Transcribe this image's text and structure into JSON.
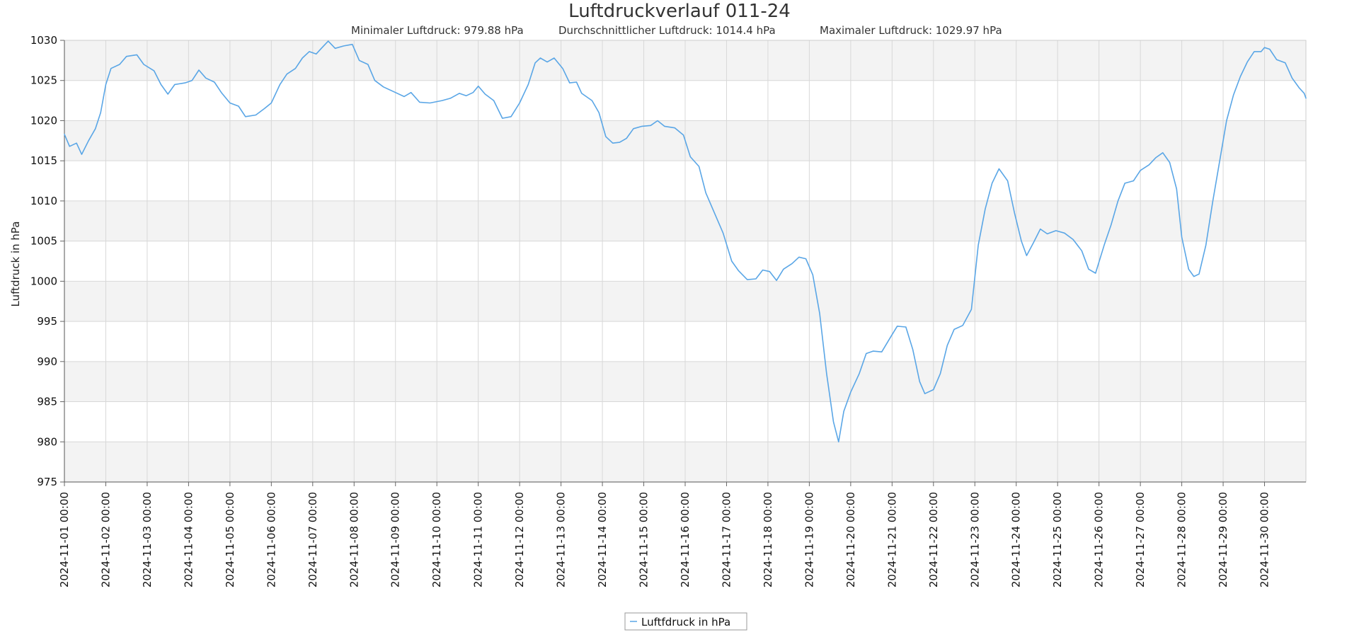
{
  "title": "Luftdruckverlauf 011-24",
  "stats": {
    "min": "Minimaler Luftdruck: 979.88 hPa",
    "avg": "Durchschnittlicher Luftdruck: 1014.4 hPa",
    "max": "Maximaler Luftdruck: 1029.97 hPa"
  },
  "legend": {
    "label": "Luftfdruck in hPa"
  },
  "colors": {
    "line": "#5aa6e6",
    "band": "#f3f3f3",
    "grid": "#d8d8d8"
  },
  "chart_data": {
    "type": "line",
    "title": "Luftdruckverlauf 011-24",
    "ylabel": "Luftdruck in hPa",
    "xlabel": "",
    "ylim": [
      975,
      1030
    ],
    "xlim": [
      "2024-11-01 00:00",
      "2024-12-01 00:00"
    ],
    "grid": true,
    "legend_position": "bottom",
    "y_ticks": [
      975,
      980,
      985,
      990,
      995,
      1000,
      1005,
      1010,
      1015,
      1020,
      1025,
      1030
    ],
    "x_tick_labels": [
      "2024-11-01 00:00",
      "2024-11-02 00:00",
      "2024-11-03 00:00",
      "2024-11-04 00:00",
      "2024-11-05 00:00",
      "2024-11-06 00:00",
      "2024-11-07 00:00",
      "2024-11-08 00:00",
      "2024-11-09 00:00",
      "2024-11-10 00:00",
      "2024-11-11 00:00",
      "2024-11-12 00:00",
      "2024-11-13 00:00",
      "2024-11-14 00:00",
      "2024-11-15 00:00",
      "2024-11-16 00:00",
      "2024-11-17 00:00",
      "2024-11-18 00:00",
      "2024-11-19 00:00",
      "2024-11-20 00:00",
      "2024-11-21 00:00",
      "2024-11-22 00:00",
      "2024-11-23 00:00",
      "2024-11-24 00:00",
      "2024-11-25 00:00",
      "2024-11-26 00:00",
      "2024-11-27 00:00",
      "2024-11-28 00:00",
      "2024-11-29 00:00",
      "2024-11-30 00:00"
    ],
    "series": [
      {
        "name": "Luftfdruck in hPa",
        "points": [
          [
            "2024-11-01 00:00",
            1018.3
          ],
          [
            "2024-11-01 03:00",
            1016.8
          ],
          [
            "2024-11-01 07:00",
            1017.2
          ],
          [
            "2024-11-01 10:00",
            1015.8
          ],
          [
            "2024-11-01 14:00",
            1017.5
          ],
          [
            "2024-11-01 18:00",
            1019.0
          ],
          [
            "2024-11-01 21:00",
            1021.0
          ],
          [
            "2024-11-02 00:00",
            1024.5
          ],
          [
            "2024-11-02 03:00",
            1026.5
          ],
          [
            "2024-11-02 08:00",
            1027.0
          ],
          [
            "2024-11-02 12:00",
            1028.0
          ],
          [
            "2024-11-02 18:00",
            1028.2
          ],
          [
            "2024-11-02 22:00",
            1027.0
          ],
          [
            "2024-11-03 04:00",
            1026.2
          ],
          [
            "2024-11-03 08:00",
            1024.5
          ],
          [
            "2024-11-03 12:00",
            1023.3
          ],
          [
            "2024-11-03 16:00",
            1024.5
          ],
          [
            "2024-11-03 22:00",
            1024.7
          ],
          [
            "2024-11-04 02:00",
            1025.0
          ],
          [
            "2024-11-04 06:00",
            1026.3
          ],
          [
            "2024-11-04 10:00",
            1025.3
          ],
          [
            "2024-11-04 15:00",
            1024.8
          ],
          [
            "2024-11-04 19:00",
            1023.5
          ],
          [
            "2024-11-05 00:00",
            1022.2
          ],
          [
            "2024-11-05 05:00",
            1021.8
          ],
          [
            "2024-11-05 09:00",
            1020.5
          ],
          [
            "2024-11-05 15:00",
            1020.7
          ],
          [
            "2024-11-05 20:00",
            1021.5
          ],
          [
            "2024-11-06 00:00",
            1022.2
          ],
          [
            "2024-11-06 05:00",
            1024.5
          ],
          [
            "2024-11-06 09:00",
            1025.8
          ],
          [
            "2024-11-06 14:00",
            1026.5
          ],
          [
            "2024-11-06 18:00",
            1027.8
          ],
          [
            "2024-11-06 22:00",
            1028.6
          ],
          [
            "2024-11-07 02:00",
            1028.3
          ],
          [
            "2024-11-07 05:00",
            1029.0
          ],
          [
            "2024-11-07 09:00",
            1029.9
          ],
          [
            "2024-11-07 13:00",
            1029.0
          ],
          [
            "2024-11-07 18:00",
            1029.3
          ],
          [
            "2024-11-07 23:00",
            1029.5
          ],
          [
            "2024-11-08 03:00",
            1027.5
          ],
          [
            "2024-11-08 08:00",
            1027.0
          ],
          [
            "2024-11-08 12:00",
            1025.0
          ],
          [
            "2024-11-08 17:00",
            1024.2
          ],
          [
            "2024-11-09 00:00",
            1023.5
          ],
          [
            "2024-11-09 05:00",
            1023.0
          ],
          [
            "2024-11-09 09:00",
            1023.5
          ],
          [
            "2024-11-09 14:00",
            1022.3
          ],
          [
            "2024-11-09 20:00",
            1022.2
          ],
          [
            "2024-11-10 03:00",
            1022.5
          ],
          [
            "2024-11-10 08:00",
            1022.8
          ],
          [
            "2024-11-10 13:00",
            1023.4
          ],
          [
            "2024-11-10 17:00",
            1023.1
          ],
          [
            "2024-11-10 21:00",
            1023.5
          ],
          [
            "2024-11-11 00:00",
            1024.3
          ],
          [
            "2024-11-11 04:00",
            1023.3
          ],
          [
            "2024-11-11 09:00",
            1022.5
          ],
          [
            "2024-11-11 14:00",
            1020.3
          ],
          [
            "2024-11-11 19:00",
            1020.5
          ],
          [
            "2024-11-12 00:00",
            1022.2
          ],
          [
            "2024-11-12 05:00",
            1024.5
          ],
          [
            "2024-11-12 09:00",
            1027.2
          ],
          [
            "2024-11-12 12:00",
            1027.8
          ],
          [
            "2024-11-12 16:00",
            1027.3
          ],
          [
            "2024-11-12 20:00",
            1027.8
          ],
          [
            "2024-11-13 01:00",
            1026.5
          ],
          [
            "2024-11-13 05:00",
            1024.7
          ],
          [
            "2024-11-13 09:00",
            1024.8
          ],
          [
            "2024-11-13 12:00",
            1023.4
          ],
          [
            "2024-11-13 18:00",
            1022.5
          ],
          [
            "2024-11-13 22:00",
            1021.0
          ],
          [
            "2024-11-14 02:00",
            1018.0
          ],
          [
            "2024-11-14 06:00",
            1017.2
          ],
          [
            "2024-11-14 10:00",
            1017.3
          ],
          [
            "2024-11-14 14:00",
            1017.8
          ],
          [
            "2024-11-14 18:00",
            1019.0
          ],
          [
            "2024-11-14 23:00",
            1019.3
          ],
          [
            "2024-11-15 04:00",
            1019.4
          ],
          [
            "2024-11-15 08:00",
            1020.0
          ],
          [
            "2024-11-15 12:00",
            1019.3
          ],
          [
            "2024-11-15 18:00",
            1019.1
          ],
          [
            "2024-11-15 23:00",
            1018.2
          ],
          [
            "2024-11-16 03:00",
            1015.5
          ],
          [
            "2024-11-16 08:00",
            1014.3
          ],
          [
            "2024-11-16 12:00",
            1011.0
          ],
          [
            "2024-11-16 17:00",
            1008.5
          ],
          [
            "2024-11-16 22:00",
            1006.0
          ],
          [
            "2024-11-17 03:00",
            1002.5
          ],
          [
            "2024-11-17 07:00",
            1001.3
          ],
          [
            "2024-11-17 12:00",
            1000.2
          ],
          [
            "2024-11-17 17:00",
            1000.3
          ],
          [
            "2024-11-17 21:00",
            1001.4
          ],
          [
            "2024-11-18 01:00",
            1001.2
          ],
          [
            "2024-11-18 05:00",
            1000.1
          ],
          [
            "2024-11-18 09:00",
            1001.5
          ],
          [
            "2024-11-18 14:00",
            1002.2
          ],
          [
            "2024-11-18 18:00",
            1003.0
          ],
          [
            "2024-11-18 22:00",
            1002.8
          ],
          [
            "2024-11-19 02:00",
            1000.8
          ],
          [
            "2024-11-19 06:00",
            996.0
          ],
          [
            "2024-11-19 10:00",
            988.5
          ],
          [
            "2024-11-19 14:00",
            982.5
          ],
          [
            "2024-11-19 17:00",
            980.0
          ],
          [
            "2024-11-19 20:00",
            983.8
          ],
          [
            "2024-11-20 00:00",
            986.2
          ],
          [
            "2024-11-20 05:00",
            988.5
          ],
          [
            "2024-11-20 09:00",
            991.0
          ],
          [
            "2024-11-20 13:00",
            991.3
          ],
          [
            "2024-11-20 18:00",
            991.2
          ],
          [
            "2024-11-20 23:00",
            993.0
          ],
          [
            "2024-11-21 03:00",
            994.4
          ],
          [
            "2024-11-21 08:00",
            994.3
          ],
          [
            "2024-11-21 12:00",
            991.5
          ],
          [
            "2024-11-21 16:00",
            987.5
          ],
          [
            "2024-11-21 19:00",
            986.0
          ],
          [
            "2024-11-22 00:00",
            986.5
          ],
          [
            "2024-11-22 04:00",
            988.5
          ],
          [
            "2024-11-22 08:00",
            992.0
          ],
          [
            "2024-11-22 12:00",
            994.0
          ],
          [
            "2024-11-22 17:00",
            994.5
          ],
          [
            "2024-11-22 22:00",
            996.5
          ],
          [
            "2024-11-23 02:00",
            1004.5
          ],
          [
            "2024-11-23 06:00",
            1009.0
          ],
          [
            "2024-11-23 10:00",
            1012.2
          ],
          [
            "2024-11-23 14:00",
            1014.0
          ],
          [
            "2024-11-23 19:00",
            1012.5
          ],
          [
            "2024-11-23 23:00",
            1008.5
          ],
          [
            "2024-11-24 03:00",
            1005.0
          ],
          [
            "2024-11-24 06:00",
            1003.2
          ],
          [
            "2024-11-24 10:00",
            1004.8
          ],
          [
            "2024-11-24 14:00",
            1006.5
          ],
          [
            "2024-11-24 18:00",
            1005.9
          ],
          [
            "2024-11-24 23:00",
            1006.3
          ],
          [
            "2024-11-25 04:00",
            1006.0
          ],
          [
            "2024-11-25 09:00",
            1005.2
          ],
          [
            "2024-11-25 14:00",
            1003.8
          ],
          [
            "2024-11-25 18:00",
            1001.5
          ],
          [
            "2024-11-25 22:00",
            1001.0
          ],
          [
            "2024-11-26 03:00",
            1004.5
          ],
          [
            "2024-11-26 07:00",
            1007.0
          ],
          [
            "2024-11-26 11:00",
            1010.0
          ],
          [
            "2024-11-26 15:00",
            1012.2
          ],
          [
            "2024-11-26 20:00",
            1012.5
          ],
          [
            "2024-11-27 00:00",
            1013.8
          ],
          [
            "2024-11-27 05:00",
            1014.5
          ],
          [
            "2024-11-27 09:00",
            1015.4
          ],
          [
            "2024-11-27 13:00",
            1016.0
          ],
          [
            "2024-11-27 17:00",
            1014.8
          ],
          [
            "2024-11-27 21:00",
            1011.5
          ],
          [
            "2024-11-28 00:00",
            1005.5
          ],
          [
            "2024-11-28 04:00",
            1001.5
          ],
          [
            "2024-11-28 07:00",
            1000.6
          ],
          [
            "2024-11-28 10:00",
            1000.9
          ],
          [
            "2024-11-28 14:00",
            1004.5
          ],
          [
            "2024-11-28 18:00",
            1010.0
          ],
          [
            "2024-11-28 22:00",
            1015.0
          ],
          [
            "2024-11-29 02:00",
            1020.0
          ],
          [
            "2024-11-29 06:00",
            1023.2
          ],
          [
            "2024-11-29 10:00",
            1025.5
          ],
          [
            "2024-11-29 14:00",
            1027.3
          ],
          [
            "2024-11-29 18:00",
            1028.6
          ],
          [
            "2024-11-29 22:00",
            1028.6
          ],
          [
            "2024-11-30 00:00",
            1029.1
          ],
          [
            "2024-11-30 03:00",
            1028.9
          ],
          [
            "2024-11-30 07:00",
            1027.6
          ],
          [
            "2024-11-30 12:00",
            1027.2
          ],
          [
            "2024-11-30 16:00",
            1025.3
          ],
          [
            "2024-11-30 20:00",
            1024.1
          ],
          [
            "2024-11-30 23:00",
            1023.4
          ],
          [
            "2024-12-01 00:00",
            1022.8
          ]
        ]
      }
    ]
  }
}
